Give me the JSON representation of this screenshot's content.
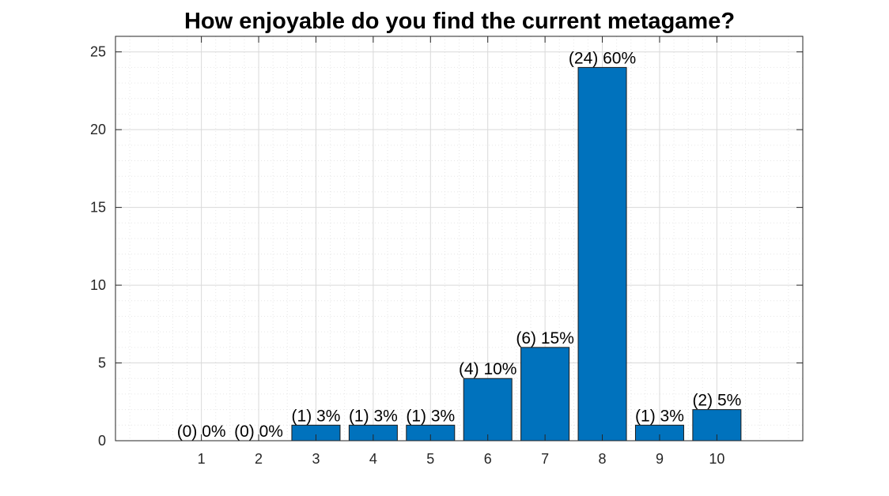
{
  "colors": {
    "bar_fill": "#0072BD",
    "bar_edge": "#1a1a1a",
    "axis": "#262626",
    "major_grid": "#d9d9d9",
    "minor_grid": "#e6e6e6",
    "background": "#ffffff"
  },
  "chart_data": {
    "type": "bar",
    "title": "How enjoyable do you find the current metagame?",
    "xlabel": "",
    "ylabel": "",
    "categories": [
      "1",
      "2",
      "3",
      "4",
      "5",
      "6",
      "7",
      "8",
      "9",
      "10"
    ],
    "values": [
      0,
      0,
      1,
      1,
      1,
      4,
      6,
      24,
      1,
      2
    ],
    "data_labels": [
      "(0) 0%",
      "(0) 0%",
      "(1) 3%",
      "(1) 3%",
      "(1) 3%",
      "(4) 10%",
      "(6) 15%",
      "(24) 60%",
      "(1) 3%",
      "(2) 5%"
    ],
    "xlim": [
      -0.5,
      11.5
    ],
    "ylim": [
      0,
      26
    ],
    "yticks": [
      0,
      5,
      10,
      15,
      20,
      25
    ],
    "ytick_labels": [
      "0",
      "5",
      "10",
      "15",
      "20",
      "25"
    ],
    "grid": "on",
    "minor_grid": "on",
    "legend": "none"
  }
}
